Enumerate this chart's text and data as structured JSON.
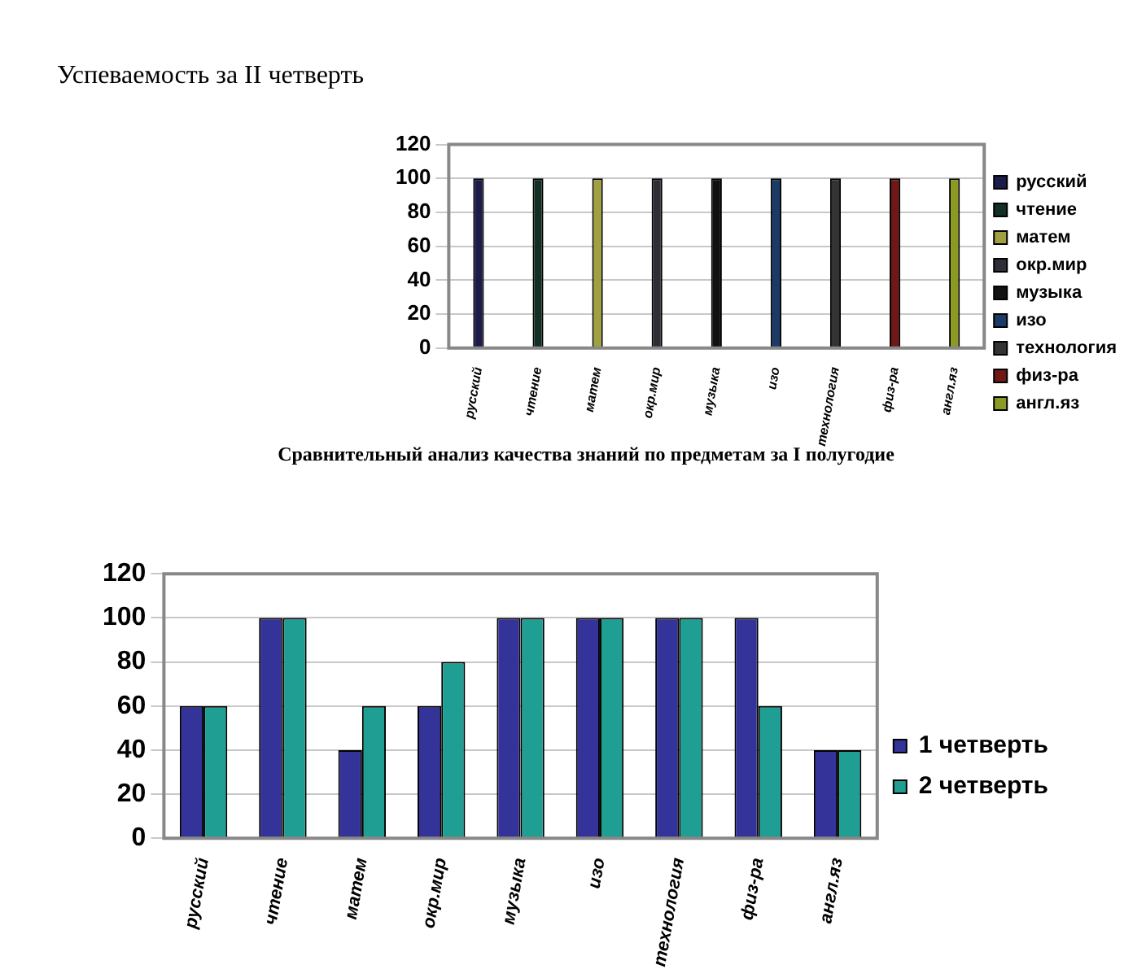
{
  "chart_data": [
    {
      "type": "bar",
      "title": "Успеваемость за II четверть",
      "categories": [
        "русский",
        "чтение",
        "матем",
        "окр.мир",
        "музыка",
        "изо",
        "технология",
        "физ-ра",
        "англ.яз"
      ],
      "series": [
        {
          "name": "русский",
          "color": "#1c1c4a",
          "values": [
            100,
            null,
            null,
            null,
            null,
            null,
            null,
            null,
            null
          ]
        },
        {
          "name": "чтение",
          "color": "#123024",
          "values": [
            null,
            100,
            null,
            null,
            null,
            null,
            null,
            null,
            null
          ]
        },
        {
          "name": "матем",
          "color": "#a0a040",
          "values": [
            null,
            null,
            100,
            null,
            null,
            null,
            null,
            null,
            null
          ]
        },
        {
          "name": "окр.мир",
          "color": "#2e2e36",
          "values": [
            null,
            null,
            null,
            100,
            null,
            null,
            null,
            null,
            null
          ]
        },
        {
          "name": "музыка",
          "color": "#111111",
          "values": [
            null,
            null,
            null,
            null,
            100,
            null,
            null,
            null,
            null
          ]
        },
        {
          "name": "изо",
          "color": "#1c3a66",
          "values": [
            null,
            null,
            null,
            null,
            null,
            100,
            null,
            null,
            null
          ]
        },
        {
          "name": "технология",
          "color": "#333333",
          "values": [
            null,
            null,
            null,
            null,
            null,
            null,
            100,
            null,
            null
          ]
        },
        {
          "name": "физ-ра",
          "color": "#701818",
          "values": [
            null,
            null,
            null,
            null,
            null,
            null,
            null,
            100,
            null
          ]
        },
        {
          "name": "англ.яз",
          "color": "#8c9a24",
          "values": [
            null,
            null,
            null,
            null,
            null,
            null,
            null,
            null,
            100
          ]
        }
      ],
      "ylim": [
        0,
        120
      ],
      "yticks": [
        0,
        20,
        40,
        60,
        80,
        100,
        120
      ],
      "grid": "y",
      "legend": "right"
    },
    {
      "type": "bar",
      "title": "Сравнительный анализ качества знаний по предметам за I полугодие",
      "categories": [
        "русский",
        "чтение",
        "матем",
        "окр.мир",
        "музыка",
        "изо",
        "технология",
        "физ-ра",
        "англ.яз"
      ],
      "series": [
        {
          "name": "1 четверть",
          "color": "#333399",
          "values": [
            60,
            100,
            40,
            60,
            100,
            100,
            100,
            100,
            40
          ]
        },
        {
          "name": "2 четверть",
          "color": "#1f9e94",
          "values": [
            60,
            100,
            60,
            80,
            100,
            100,
            100,
            60,
            40
          ]
        }
      ],
      "ylim": [
        0,
        120
      ],
      "yticks": [
        0,
        20,
        40,
        60,
        80,
        100,
        120
      ],
      "grid": "y",
      "legend": "right"
    }
  ]
}
